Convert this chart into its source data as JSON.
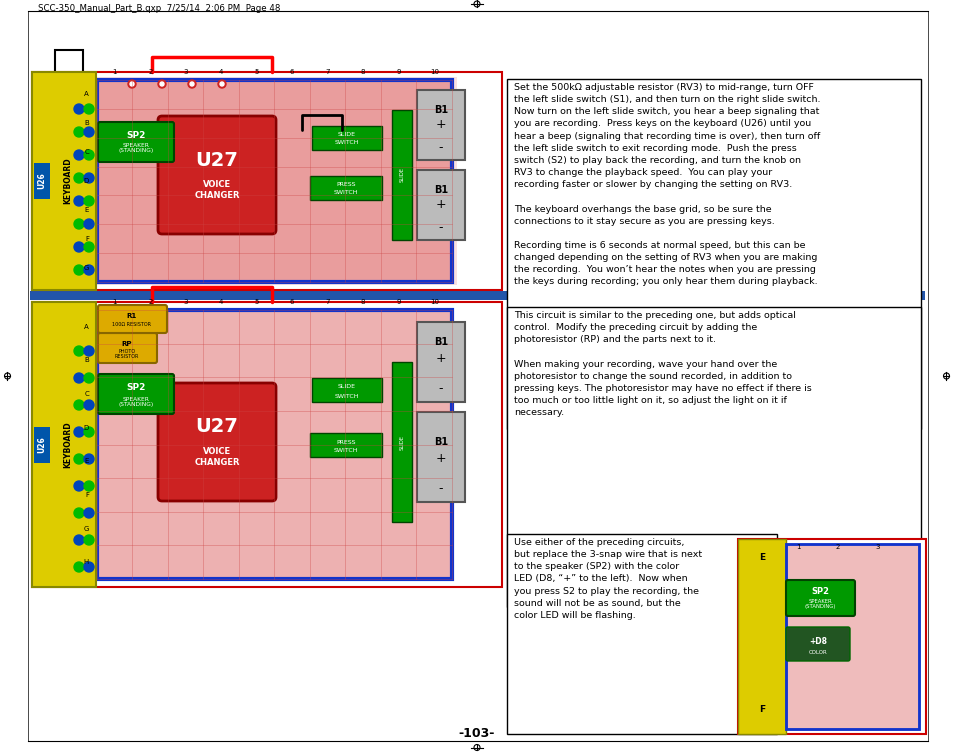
{
  "page_header": "SCC-350_Manual_Part_B.qxp  7/25/14  2:06 PM  Page 48",
  "page_number": "-103-",
  "bg_color": "#ffffff",
  "blue_bar_color": "#2255aa",
  "text_block1": "Set the 500kΩ adjustable resistor (RV3) to mid-range, turn OFF\nthe left slide switch (S1), and then turn on the right slide switch.\nNow turn on the left slide switch, you hear a beep signaling that\nyou are recording.  Press keys on the keyboard (U26) until you\nhear a beep (signaling that recording time is over), then turn off\nthe left slide switch to exit recording mode.  Push the press\nswitch (S2) to play back the recording, and turn the knob on\nRV3 to change the playback speed.  You can play your\nrecording faster or slower by changing the setting on RV3.\n\nThe keyboard overhangs the base grid, so be sure the\nconnections to it stay secure as you are pressing keys.\n\nRecording time is 6 seconds at normal speed, but this can be\nchanged depending on the setting of RV3 when you are making\nthe recording.  You won’t hear the notes when you are pressing\nthe keys during recording; you only hear them during playback.",
  "text_block2": "This circuit is similar to the preceding one, but adds optical\ncontrol.  Modify the preceding circuit by adding the\nphotoresistor (RP) and the parts next to it.\n\nWhen making your recording, wave your hand over the\nphotoresistor to change the sound recorded, in addition to\npressing keys. The photoresistor may have no effect if there is\ntoo much or too little light on it, so adjust the light on it if\nnecessary.",
  "text_block3": "Use either of the preceding circuits,\nbut replace the 3-snap wire that is next\nto the speaker (SP2) with the color\nLED (D8, “+” to the left).  Now when\nyou press S2 to play the recording, the\nsound will not be as sound, but the\ncolor LED will be flashing.",
  "fig_width": 9.54,
  "fig_height": 7.52,
  "dpi": 100
}
